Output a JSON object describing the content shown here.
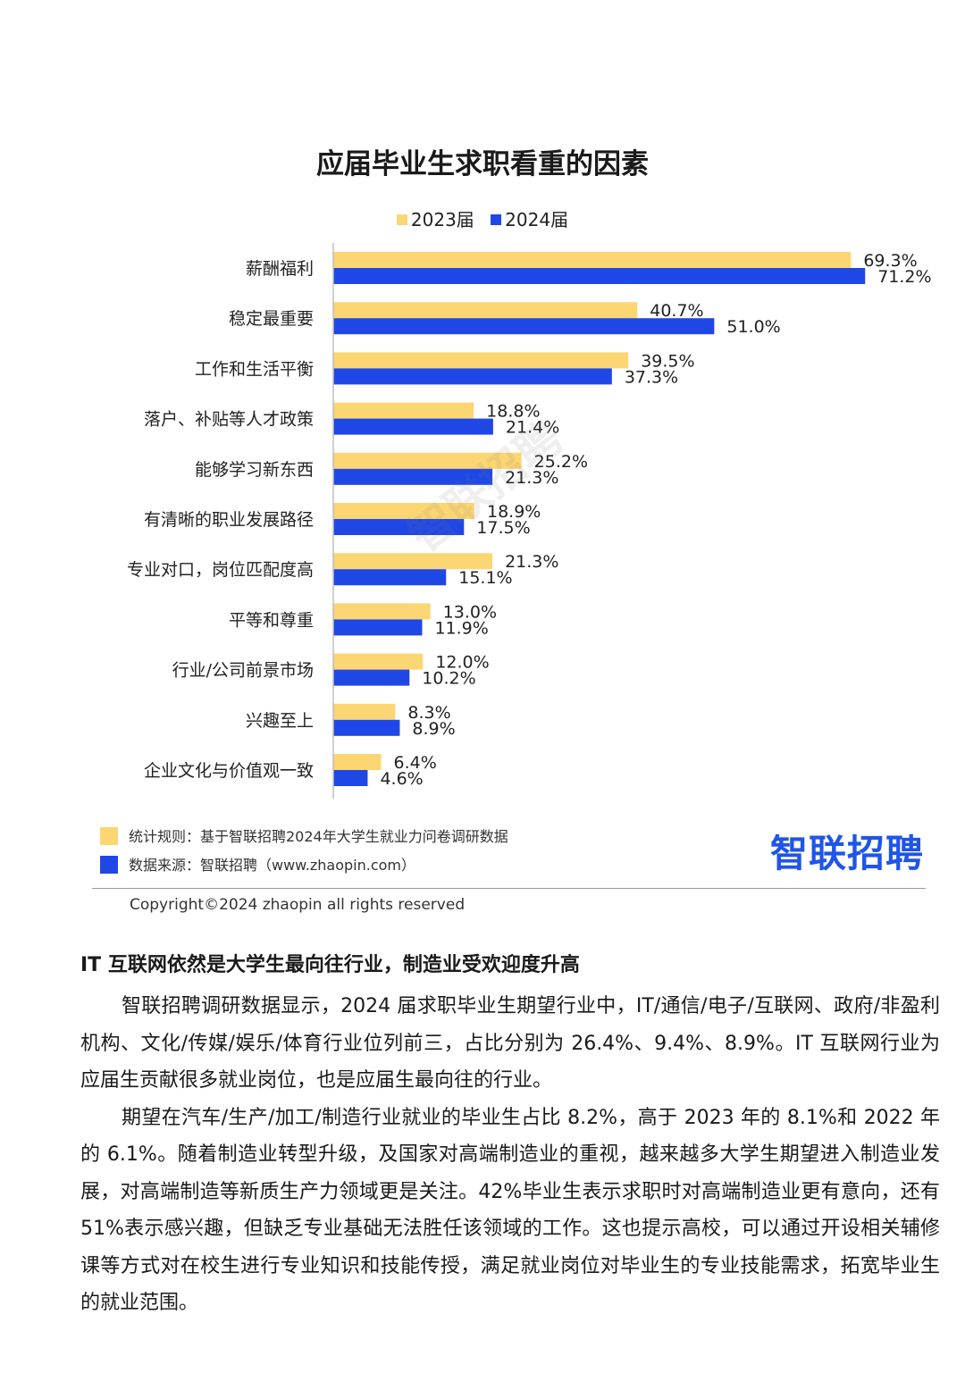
{
  "chart_data": {
    "type": "bar",
    "orientation": "horizontal",
    "title": "应届毕业生求职看重的因素",
    "categories": [
      "薪酬福利",
      "稳定最重要",
      "工作和生活平衡",
      "落户、补贴等人才政策",
      "能够学习新东西",
      "有清晰的职业发展路径",
      "专业对口，岗位匹配度高",
      "平等和尊重",
      "行业/公司前景市场",
      "兴趣至上",
      "企业文化与价值观一致"
    ],
    "series": [
      {
        "name": "2023届",
        "color": "#fcd672",
        "values": [
          69.3,
          40.7,
          39.5,
          18.8,
          25.2,
          18.9,
          21.3,
          13.0,
          12.0,
          8.3,
          6.4
        ]
      },
      {
        "name": "2024届",
        "color": "#1f47e6",
        "values": [
          71.2,
          51.0,
          37.3,
          21.4,
          21.3,
          17.5,
          15.1,
          11.9,
          10.2,
          8.9,
          4.6
        ]
      }
    ],
    "xlim": [
      0,
      75
    ],
    "grid": false,
    "legend_position": "top-center",
    "value_suffix": "%"
  },
  "legend": {
    "label_2023": "2023届",
    "label_2024": "2024届"
  },
  "notes": {
    "rule": "统计规则：基于智联招聘2024年大学生就业力问卷调研数据",
    "source": "数据来源：智联招聘（www.zhaopin.com）"
  },
  "brand": {
    "logo_text": "智联招聘",
    "watermark": "智联招聘"
  },
  "copyright": "Copyright©2024 zhaopin all rights reserved",
  "article": {
    "heading": "IT 互联网依然是大学生最向往行业，制造业受欢迎度升高",
    "paragraphs": [
      "智联招聘调研数据显示，2024 届求职毕业生期望行业中，IT/通信/电子/互联网、政府/非盈利机构、文化/传媒/娱乐/体育行业位列前三，占比分别为 26.4%、9.4%、8.9%。IT 互联网行业为应届生贡献很多就业岗位，也是应届生最向往的行业。",
      "期望在汽车/生产/加工/制造行业就业的毕业生占比 8.2%，高于 2023 年的 8.1%和 2022 年的 6.1%。随着制造业转型升级，及国家对高端制造业的重视，越来越多大学生期望进入制造业发展，对高端制造等新质生产力领域更是关注。42%毕业生表示求职时对高端制造业更有意向，还有 51%表示感兴趣，但缺乏专业基础无法胜任该领域的工作。这也提示高校，可以通过开设相关辅修课等方式对在校生进行专业知识和技能传授，满足就业岗位对毕业生的专业技能需求，拓宽毕业生的就业范围。"
    ]
  }
}
